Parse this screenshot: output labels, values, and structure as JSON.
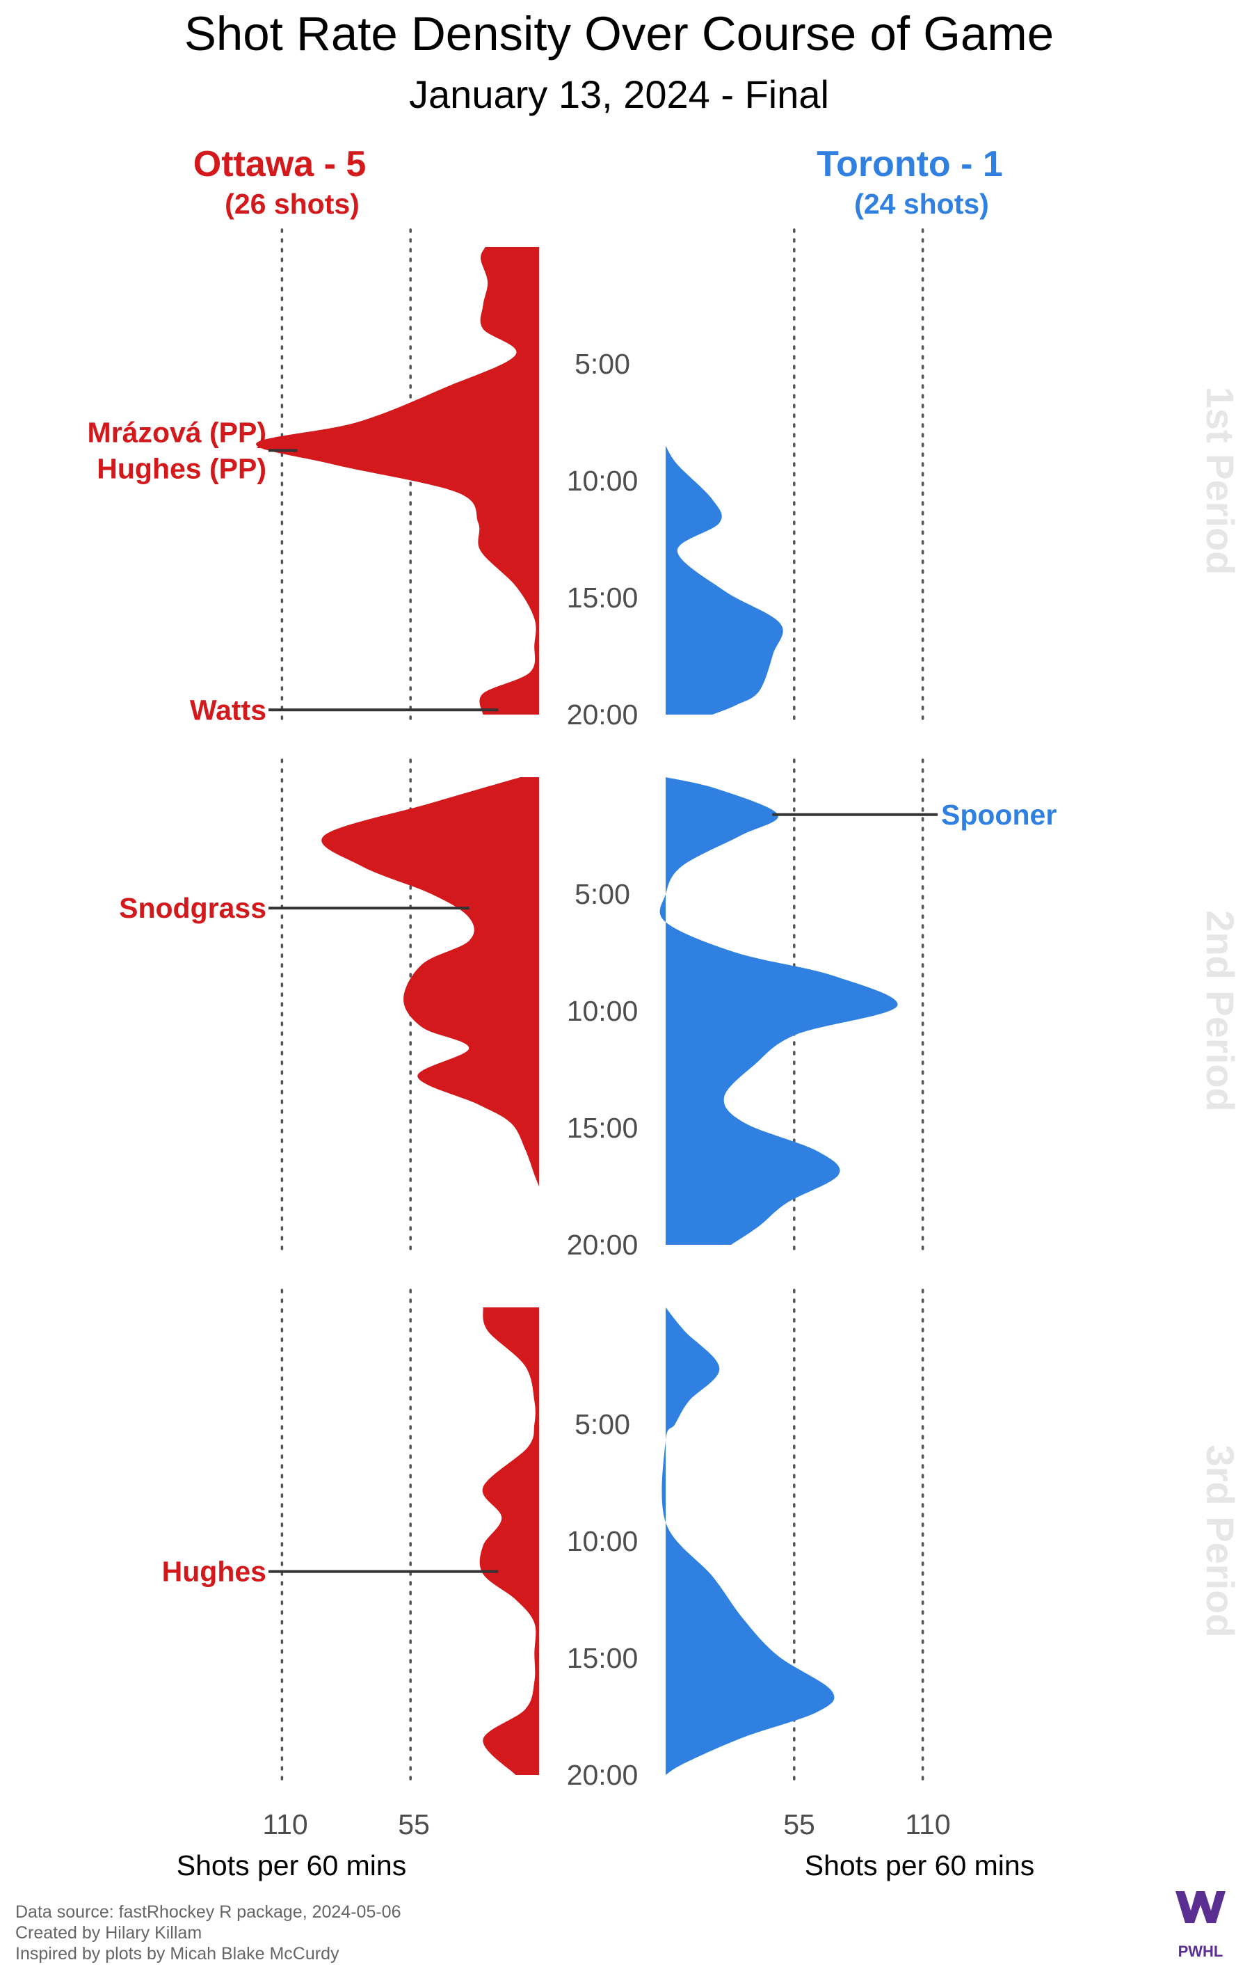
{
  "title": "Shot Rate Density Over Course of Game",
  "subtitle": "January 13, 2024 - Final",
  "colors": {
    "ottawa": "#d3191c",
    "toronto": "#2f80e0",
    "period_label": "#e6e6e6",
    "logo": "#5b2e91"
  },
  "teams": {
    "left": {
      "name": "Ottawa - 5",
      "shots": "(26 shots)"
    },
    "right": {
      "name": "Toronto - 1",
      "shots": "(24 shots)"
    }
  },
  "axis": {
    "left_ticks": [
      "110",
      "55"
    ],
    "right_ticks": [
      "55",
      "110"
    ],
    "left_label": "Shots per 60 mins",
    "right_label": "Shots per 60 mins"
  },
  "time_labels": [
    "5:00",
    "10:00",
    "15:00",
    "20:00"
  ],
  "periods": [
    "1st Period",
    "2nd Period",
    "3rd Period"
  ],
  "caption": [
    "Data source: fastRhockey R package, 2024-05-06",
    "Created by Hilary Killam",
    "Inspired by plots by Micah Blake McCurdy"
  ],
  "logo_text": "PWHL",
  "chart_data": {
    "type": "area",
    "title": "Shot Rate Density Over Course of Game",
    "subtitle": "January 13, 2024 - Final",
    "xlabel": "Shots per 60 mins",
    "ylabel": "",
    "orientation": "vertical-mirrored",
    "y_unit_ticks": [
      "5:00",
      "10:00",
      "15:00",
      "20:00"
    ],
    "x_ticks": [
      55,
      110
    ],
    "xlim": [
      0,
      125
    ],
    "series": [
      {
        "name": "Ottawa - 5",
        "side": "left",
        "periods": [
          {
            "period": "1st Period",
            "points": [
              [
                0,
                23
              ],
              [
                0.5,
                25
              ],
              [
                1.5,
                22
              ],
              [
                2.5,
                24
              ],
              [
                3.5,
                24
              ],
              [
                4.6,
                10
              ],
              [
                6,
                40
              ],
              [
                7.5,
                78
              ],
              [
                8.4,
                121
              ],
              [
                9.3,
                88
              ],
              [
                10.5,
                35
              ],
              [
                11.8,
                26
              ],
              [
                13,
                25
              ],
              [
                14.5,
                10
              ],
              [
                15.9,
                2
              ],
              [
                17,
                2
              ],
              [
                18.2,
                4
              ],
              [
                19.1,
                24
              ],
              [
                20,
                24
              ]
            ]
          },
          {
            "period": "2nd Period",
            "points": [
              [
                0,
                8
              ],
              [
                1.1,
                46
              ],
              [
                2.5,
                92
              ],
              [
                3.8,
                76
              ],
              [
                5,
                46
              ],
              [
                6,
                30
              ],
              [
                7,
                30
              ],
              [
                8,
                50
              ],
              [
                9.5,
                58
              ],
              [
                10.7,
                50
              ],
              [
                11.6,
                30
              ],
              [
                12.8,
                52
              ],
              [
                14,
                26
              ],
              [
                14.8,
                12
              ],
              [
                15.9,
                6
              ],
              [
                17,
                2
              ],
              [
                17.5,
                0
              ]
            ]
          },
          {
            "period": "3rd Period",
            "points": [
              [
                0,
                24
              ],
              [
                1,
                22
              ],
              [
                2.5,
                6
              ],
              [
                4,
                2
              ],
              [
                5,
                2
              ],
              [
                6,
                5
              ],
              [
                7.7,
                24
              ],
              [
                9,
                16
              ],
              [
                10.2,
                24
              ],
              [
                11.4,
                24
              ],
              [
                12.5,
                10
              ],
              [
                13.5,
                2
              ],
              [
                14.8,
                2
              ],
              [
                16,
                2
              ],
              [
                17.2,
                6
              ],
              [
                18.5,
                24
              ],
              [
                20,
                10
              ]
            ]
          }
        ]
      },
      {
        "name": "Toronto - 1",
        "side": "right",
        "periods": [
          {
            "period": "1st Period",
            "points": [
              [
                8.5,
                0
              ],
              [
                9.3,
                5
              ],
              [
                10.8,
                20
              ],
              [
                11.8,
                23
              ],
              [
                13,
                5
              ],
              [
                14.7,
                25
              ],
              [
                16.1,
                49
              ],
              [
                17.4,
                46
              ],
              [
                19,
                40
              ],
              [
                19.6,
                30
              ],
              [
                20,
                20
              ]
            ]
          },
          {
            "period": "2nd Period",
            "points": [
              [
                0,
                0
              ],
              [
                0.5,
                22
              ],
              [
                1.6,
                48
              ],
              [
                2.5,
                32
              ],
              [
                3.8,
                7
              ],
              [
                5,
                0
              ],
              [
                6.2,
                0
              ],
              [
                7.5,
                30
              ],
              [
                8.5,
                72
              ],
              [
                9.8,
                99
              ],
              [
                11,
                56
              ],
              [
                12.3,
                38
              ],
              [
                13.7,
                25
              ],
              [
                14.8,
                34
              ],
              [
                16,
                65
              ],
              [
                17,
                74
              ],
              [
                18.2,
                52
              ],
              [
                19.2,
                40
              ],
              [
                20,
                28
              ]
            ]
          },
          {
            "period": "3rd Period",
            "points": [
              [
                0,
                0
              ],
              [
                1,
                8
              ],
              [
                2.6,
                23
              ],
              [
                4,
                10
              ],
              [
                5,
                4
              ],
              [
                5.7,
                0
              ],
              [
                9.2,
                0
              ],
              [
                11.5,
                20
              ],
              [
                13.3,
                33
              ],
              [
                14.9,
                48
              ],
              [
                16.4,
                71
              ],
              [
                17.3,
                65
              ],
              [
                18.4,
                33
              ],
              [
                19.5,
                8
              ],
              [
                20,
                0
              ]
            ]
          }
        ]
      }
    ],
    "goal_annotations": [
      {
        "team": "Ottawa - 5",
        "period": "1st Period",
        "time_min": 8.7,
        "label": "Mrázová (PP)"
      },
      {
        "team": "Ottawa - 5",
        "period": "1st Period",
        "time_min": 8.7,
        "label": "Hughes (PP)"
      },
      {
        "team": "Ottawa - 5",
        "period": "1st Period",
        "time_min": 19.8,
        "label": "Watts"
      },
      {
        "team": "Toronto - 1",
        "period": "2nd Period",
        "time_min": 1.6,
        "label": "Spooner"
      },
      {
        "team": "Ottawa - 5",
        "period": "2nd Period",
        "time_min": 5.6,
        "label": "Snodgrass"
      },
      {
        "team": "Ottawa - 5",
        "period": "3rd Period",
        "time_min": 11.3,
        "label": "Hughes"
      }
    ]
  }
}
